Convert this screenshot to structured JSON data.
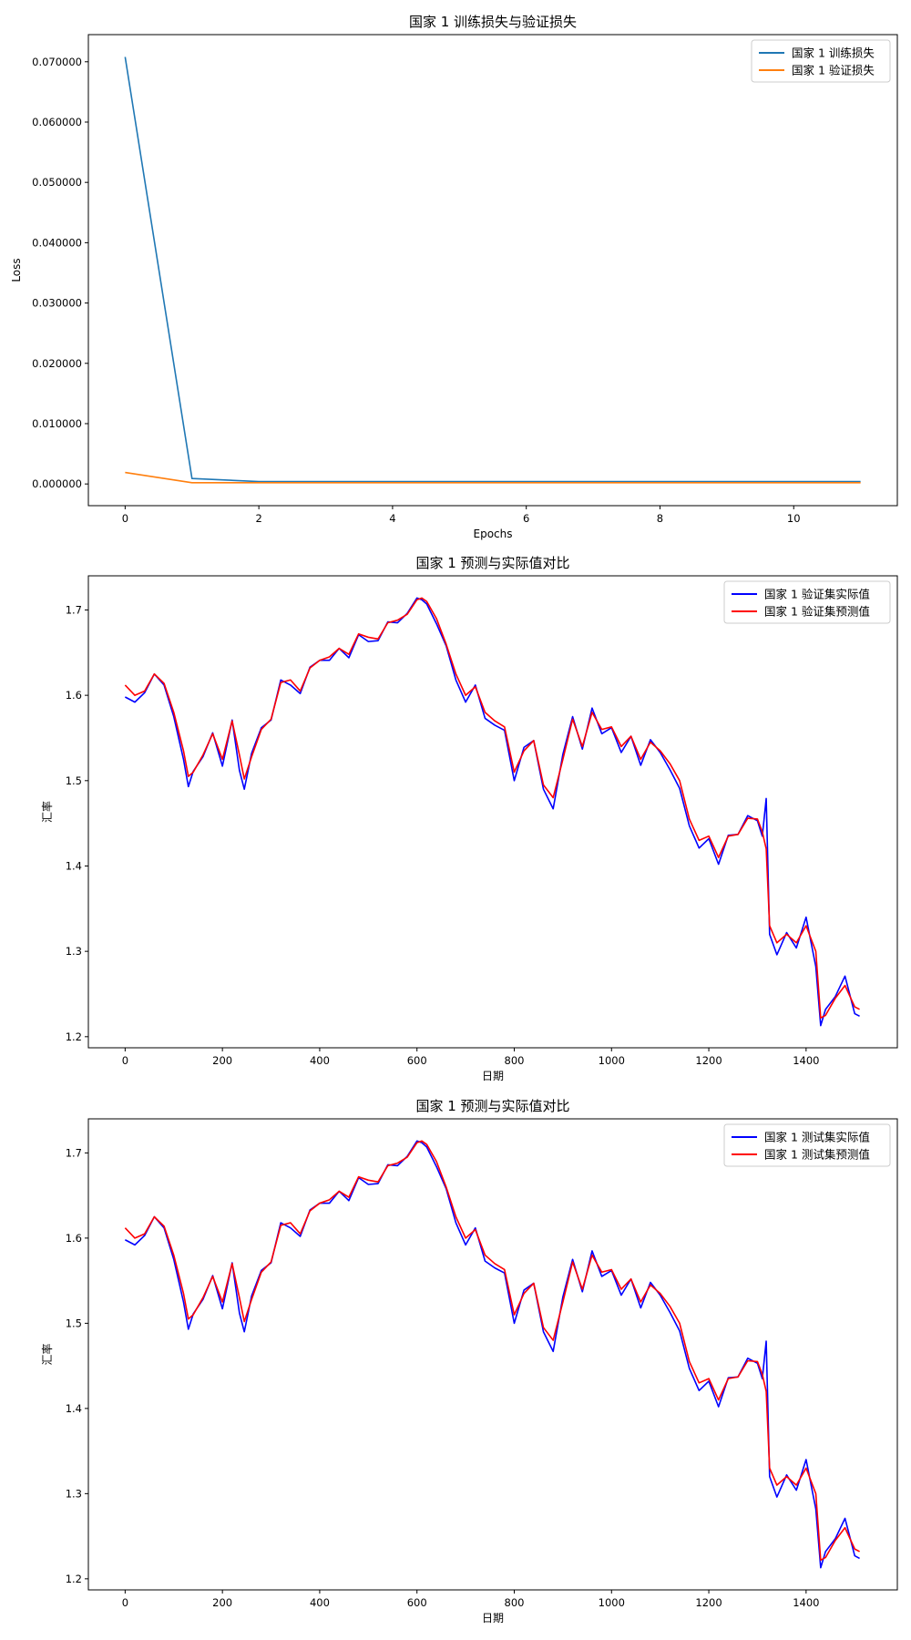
{
  "chart_data": [
    {
      "type": "line",
      "title": "国家 1 训练损失与验证损失",
      "xlabel": "Epochs",
      "ylabel": "Loss",
      "xlim": [
        -0.55,
        11.55
      ],
      "ylim": [
        -0.0036,
        0.0745
      ],
      "xticks": [
        0,
        2,
        4,
        6,
        8,
        10
      ],
      "xtick_labels": [
        "0",
        "2",
        "4",
        "6",
        "8",
        "10"
      ],
      "yticks": [
        0,
        0.01,
        0.02,
        0.03,
        0.04,
        0.05,
        0.06,
        0.07
      ],
      "ytick_labels": [
        "0.000000",
        "0.010000",
        "0.020000",
        "0.030000",
        "0.040000",
        "0.050000",
        "0.060000",
        "0.070000"
      ],
      "grid": false,
      "legend_position": "top-right",
      "x": [
        0,
        1,
        2,
        3,
        4,
        5,
        6,
        7,
        8,
        9,
        10,
        11
      ],
      "series": [
        {
          "name": "国家 1 训练损失",
          "color": "#1f77b4",
          "values": [
            0.0708,
            0.0009,
            0.0004,
            0.0004,
            0.0004,
            0.0004,
            0.0004,
            0.0004,
            0.0004,
            0.0004,
            0.0004,
            0.0004
          ]
        },
        {
          "name": "国家 1 验证损失",
          "color": "#ff7f0e",
          "values": [
            0.0019,
            0.0002,
            0.0002,
            0.0002,
            0.0002,
            0.0002,
            0.0002,
            0.0002,
            0.0002,
            0.0002,
            0.0002,
            0.0002
          ]
        }
      ]
    },
    {
      "type": "line",
      "title": "国家 1 预测与实际值对比",
      "xlabel": "日期",
      "ylabel": "汇率",
      "xlim": [
        -75.6,
        1587.6
      ],
      "ylim": [
        1.187,
        1.74
      ],
      "xticks": [
        0,
        200,
        400,
        600,
        800,
        1000,
        1200,
        1400
      ],
      "xtick_labels": [
        "0",
        "200",
        "400",
        "600",
        "800",
        "1000",
        "1200",
        "1400"
      ],
      "yticks": [
        1.2,
        1.3,
        1.4,
        1.5,
        1.6,
        1.7
      ],
      "ytick_labels": [
        "1.2",
        "1.3",
        "1.4",
        "1.5",
        "1.6",
        "1.7"
      ],
      "grid": false,
      "legend_position": "top-right",
      "x": [
        0,
        20,
        40,
        60,
        80,
        100,
        120,
        130,
        140,
        160,
        180,
        200,
        220,
        235,
        245,
        260,
        280,
        300,
        320,
        340,
        360,
        380,
        400,
        420,
        440,
        460,
        480,
        500,
        520,
        540,
        560,
        580,
        600,
        610,
        620,
        640,
        660,
        680,
        700,
        720,
        740,
        760,
        780,
        800,
        820,
        840,
        860,
        880,
        900,
        920,
        940,
        960,
        980,
        1000,
        1020,
        1040,
        1060,
        1080,
        1100,
        1120,
        1140,
        1160,
        1180,
        1200,
        1220,
        1240,
        1260,
        1280,
        1300,
        1310,
        1318,
        1325,
        1340,
        1360,
        1380,
        1400,
        1420,
        1430,
        1440,
        1460,
        1480,
        1500,
        1510
      ],
      "series": [
        {
          "name": "国家 1 验证集实际值",
          "color": "#0000ff",
          "values": [
            1.598,
            1.592,
            1.603,
            1.625,
            1.612,
            1.575,
            1.525,
            1.493,
            1.511,
            1.528,
            1.556,
            1.517,
            1.571,
            1.512,
            1.49,
            1.532,
            1.562,
            1.571,
            1.618,
            1.612,
            1.602,
            1.633,
            1.641,
            1.641,
            1.655,
            1.644,
            1.671,
            1.663,
            1.664,
            1.686,
            1.685,
            1.696,
            1.714,
            1.712,
            1.707,
            1.684,
            1.658,
            1.618,
            1.592,
            1.612,
            1.573,
            1.565,
            1.559,
            1.5,
            1.539,
            1.547,
            1.49,
            1.467,
            1.531,
            1.575,
            1.537,
            1.585,
            1.555,
            1.562,
            1.533,
            1.552,
            1.518,
            1.548,
            1.533,
            1.513,
            1.491,
            1.447,
            1.421,
            1.432,
            1.402,
            1.436,
            1.437,
            1.459,
            1.453,
            1.435,
            1.479,
            1.32,
            1.296,
            1.322,
            1.304,
            1.34,
            1.282,
            1.213,
            1.232,
            1.247,
            1.271,
            1.227,
            1.224
          ]
        },
        {
          "name": "国家 1 验证集预测值",
          "color": "#ff0000",
          "values": [
            1.612,
            1.6,
            1.605,
            1.625,
            1.614,
            1.58,
            1.535,
            1.505,
            1.51,
            1.53,
            1.555,
            1.525,
            1.57,
            1.53,
            1.502,
            1.528,
            1.56,
            1.572,
            1.615,
            1.618,
            1.605,
            1.632,
            1.641,
            1.645,
            1.655,
            1.648,
            1.672,
            1.668,
            1.666,
            1.685,
            1.688,
            1.695,
            1.712,
            1.714,
            1.71,
            1.69,
            1.66,
            1.625,
            1.6,
            1.61,
            1.58,
            1.57,
            1.563,
            1.51,
            1.535,
            1.547,
            1.495,
            1.48,
            1.525,
            1.572,
            1.54,
            1.58,
            1.56,
            1.563,
            1.54,
            1.552,
            1.525,
            1.545,
            1.535,
            1.52,
            1.5,
            1.455,
            1.43,
            1.435,
            1.41,
            1.435,
            1.437,
            1.456,
            1.455,
            1.44,
            1.42,
            1.33,
            1.31,
            1.32,
            1.31,
            1.33,
            1.3,
            1.222,
            1.225,
            1.245,
            1.26,
            1.235,
            1.232
          ]
        }
      ]
    },
    {
      "type": "line",
      "title": "国家 1 预测与实际值对比",
      "xlabel": "日期",
      "ylabel": "汇率",
      "xlim": [
        -75.6,
        1587.6
      ],
      "ylim": [
        1.187,
        1.74
      ],
      "xticks": [
        0,
        200,
        400,
        600,
        800,
        1000,
        1200,
        1400
      ],
      "xtick_labels": [
        "0",
        "200",
        "400",
        "600",
        "800",
        "1000",
        "1200",
        "1400"
      ],
      "yticks": [
        1.2,
        1.3,
        1.4,
        1.5,
        1.6,
        1.7
      ],
      "ytick_labels": [
        "1.2",
        "1.3",
        "1.4",
        "1.5",
        "1.6",
        "1.7"
      ],
      "grid": false,
      "legend_position": "top-right",
      "x": [
        0,
        20,
        40,
        60,
        80,
        100,
        120,
        130,
        140,
        160,
        180,
        200,
        220,
        235,
        245,
        260,
        280,
        300,
        320,
        340,
        360,
        380,
        400,
        420,
        440,
        460,
        480,
        500,
        520,
        540,
        560,
        580,
        600,
        610,
        620,
        640,
        660,
        680,
        700,
        720,
        740,
        760,
        780,
        800,
        820,
        840,
        860,
        880,
        900,
        920,
        940,
        960,
        980,
        1000,
        1020,
        1040,
        1060,
        1080,
        1100,
        1120,
        1140,
        1160,
        1180,
        1200,
        1220,
        1240,
        1260,
        1280,
        1300,
        1310,
        1318,
        1325,
        1340,
        1360,
        1380,
        1400,
        1420,
        1430,
        1440,
        1460,
        1480,
        1500,
        1510
      ],
      "series": [
        {
          "name": "国家 1 测试集实际值",
          "color": "#0000ff",
          "values": [
            1.598,
            1.592,
            1.603,
            1.625,
            1.612,
            1.575,
            1.525,
            1.493,
            1.511,
            1.528,
            1.556,
            1.517,
            1.571,
            1.512,
            1.49,
            1.532,
            1.562,
            1.571,
            1.618,
            1.612,
            1.602,
            1.633,
            1.641,
            1.641,
            1.655,
            1.644,
            1.671,
            1.663,
            1.664,
            1.686,
            1.685,
            1.696,
            1.714,
            1.712,
            1.707,
            1.684,
            1.658,
            1.618,
            1.592,
            1.612,
            1.573,
            1.565,
            1.559,
            1.5,
            1.539,
            1.547,
            1.49,
            1.467,
            1.531,
            1.575,
            1.537,
            1.585,
            1.555,
            1.562,
            1.533,
            1.552,
            1.518,
            1.548,
            1.533,
            1.513,
            1.491,
            1.447,
            1.421,
            1.432,
            1.402,
            1.436,
            1.437,
            1.459,
            1.453,
            1.435,
            1.479,
            1.32,
            1.296,
            1.322,
            1.304,
            1.34,
            1.282,
            1.213,
            1.232,
            1.247,
            1.271,
            1.227,
            1.224
          ]
        },
        {
          "name": "国家 1 测试集预测值",
          "color": "#ff0000",
          "values": [
            1.612,
            1.6,
            1.605,
            1.625,
            1.614,
            1.58,
            1.535,
            1.505,
            1.51,
            1.53,
            1.555,
            1.525,
            1.57,
            1.53,
            1.502,
            1.528,
            1.56,
            1.572,
            1.615,
            1.618,
            1.605,
            1.632,
            1.641,
            1.645,
            1.655,
            1.648,
            1.672,
            1.668,
            1.666,
            1.685,
            1.688,
            1.695,
            1.712,
            1.714,
            1.71,
            1.69,
            1.66,
            1.625,
            1.6,
            1.61,
            1.58,
            1.57,
            1.563,
            1.51,
            1.535,
            1.547,
            1.495,
            1.48,
            1.525,
            1.572,
            1.54,
            1.58,
            1.56,
            1.563,
            1.54,
            1.552,
            1.525,
            1.545,
            1.535,
            1.52,
            1.5,
            1.455,
            1.43,
            1.435,
            1.41,
            1.435,
            1.437,
            1.456,
            1.455,
            1.44,
            1.42,
            1.33,
            1.31,
            1.32,
            1.31,
            1.33,
            1.3,
            1.222,
            1.225,
            1.245,
            1.26,
            1.235,
            1.232
          ]
        }
      ]
    }
  ]
}
